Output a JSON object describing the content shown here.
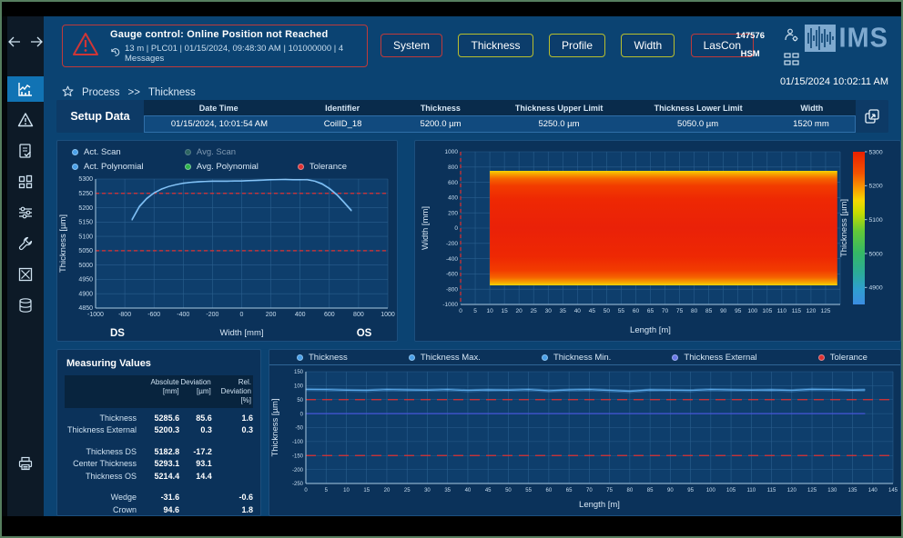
{
  "header": {
    "alert": {
      "title": "Gauge control:  Online Position not Reached",
      "details": "13 m   |   PLC01   |   01/15/2024, 09:48:30 AM   |   101000000   |   4 Messages"
    },
    "buttons": [
      {
        "label": "System",
        "border": "#c03a3a"
      },
      {
        "label": "Thickness",
        "border": "#b9bf2e"
      },
      {
        "label": "Profile",
        "border": "#b9bf2e"
      },
      {
        "label": "Width",
        "border": "#b9bf2e"
      },
      {
        "label": "LasCon",
        "border": "#c03a3a"
      }
    ],
    "line_number": "147576",
    "mill": "HSM",
    "logo_text": "IMS",
    "datetime": "01/15/2024  10:02:11 AM"
  },
  "breadcrumb": {
    "root": "Process",
    "separator": ">>",
    "current": "Thickness"
  },
  "sidebar_icons": [
    "back-arrow",
    "forward-arrow",
    "trend-chart",
    "warning-triangle",
    "report-check",
    "dashboard-grid",
    "sliders",
    "wrench",
    "crossed-box",
    "database",
    "printer"
  ],
  "setup_data": {
    "title": "Setup Data",
    "columns": [
      "Date Time",
      "Identifier",
      "Thickness",
      "Thickness Upper Limit",
      "Thickness Lower Limit",
      "Width"
    ],
    "values": [
      "01/15/2024, 10:01:54 AM",
      "CoilID_18",
      "5200.0 µm",
      "5250.0 µm",
      "5050.0 µm",
      "1520 mm"
    ],
    "expand_icon": "open-in-window"
  },
  "measuring_values": {
    "title": "Measuring Values",
    "columns": [
      {
        "line1": "Absolute",
        "line2": "[mm]"
      },
      {
        "line1": "Deviation",
        "line2": "[µm]"
      },
      {
        "line1": "Rel. Deviation",
        "line2": "[%]"
      }
    ],
    "rows": [
      {
        "label": "Thickness",
        "absolute": "5285.6",
        "deviation": "85.6",
        "rel": "1.6"
      },
      {
        "label": "Thickness External",
        "absolute": "5200.3",
        "deviation": "0.3",
        "rel": "0.3"
      },
      {
        "label": "",
        "absolute": "",
        "deviation": "",
        "rel": ""
      },
      {
        "label": "Thickness DS",
        "absolute": "5182.8",
        "deviation": "-17.2",
        "rel": ""
      },
      {
        "label": "Center Thickness",
        "absolute": "5293.1",
        "deviation": "93.1",
        "rel": ""
      },
      {
        "label": "Thickness OS",
        "absolute": "5214.4",
        "deviation": "14.4",
        "rel": ""
      },
      {
        "label": "",
        "absolute": "",
        "deviation": "",
        "rel": ""
      },
      {
        "label": "Wedge",
        "absolute": "-31.6",
        "deviation": "",
        "rel": "-0.6"
      },
      {
        "label": "Crown",
        "absolute": "94.6",
        "deviation": "",
        "rel": "1.8"
      }
    ]
  },
  "chart_data": [
    {
      "id": "profile",
      "type": "line",
      "xlabel": "Width [mm]",
      "ylabel": "Thickness [µm]",
      "xlim": [
        -1000,
        1000
      ],
      "ylim": [
        4850,
        5300
      ],
      "xtick_step": 200,
      "ytick_step": 50,
      "grid": true,
      "tolerance": [
        5250,
        5050
      ],
      "corner_labels": [
        "DS",
        "OS"
      ],
      "legend": [
        {
          "label": "Act. Scan",
          "color": "#4aa0e8",
          "row": 1,
          "col": 1
        },
        {
          "label": "Avg. Scan",
          "color": "#4a8f68",
          "row": 1,
          "col": 2,
          "dim": true
        },
        {
          "label": "Act. Polynomial",
          "color": "#4aa0e8",
          "row": 2,
          "col": 1
        },
        {
          "label": "Avg. Polynomial",
          "color": "#2fb34a",
          "row": 2,
          "col": 2
        },
        {
          "label": "Tolerance",
          "color": "#e03232",
          "row": 2,
          "col": 3
        }
      ],
      "x": [
        -750,
        -700,
        -650,
        -600,
        -550,
        -500,
        -450,
        -400,
        -350,
        -300,
        -250,
        -200,
        -150,
        -100,
        -50,
        0,
        50,
        100,
        150,
        200,
        250,
        300,
        350,
        400,
        450,
        500,
        550,
        600,
        650,
        700,
        750
      ],
      "series": [
        {
          "name": "Act. Scan",
          "color": "#5aa8e8",
          "width": 1.5,
          "values": [
            5160,
            5206,
            5233,
            5252,
            5265,
            5274,
            5280,
            5285,
            5288,
            5290,
            5291,
            5292,
            5292,
            5292,
            5293,
            5293,
            5294,
            5295,
            5296,
            5297,
            5298,
            5298,
            5297,
            5297,
            5298,
            5293,
            5284,
            5268,
            5247,
            5220,
            5192
          ]
        },
        {
          "name": "Act. Polynomial",
          "color": "#8ec6f4",
          "width": 1.1,
          "values": [
            5157,
            5203,
            5231,
            5251,
            5264,
            5274,
            5281,
            5286,
            5289,
            5291,
            5292,
            5293,
            5293,
            5293,
            5294,
            5294,
            5295,
            5296,
            5297,
            5298,
            5298,
            5299,
            5298,
            5298,
            5297,
            5292,
            5282,
            5266,
            5245,
            5218,
            5189
          ]
        }
      ]
    },
    {
      "id": "heatmap",
      "type": "heatmap",
      "xlabel": "Length [m]",
      "ylabel": "Width [mm]",
      "xlim": [
        0,
        130
      ],
      "ylim": [
        -1000,
        1000
      ],
      "xtick_step": 5,
      "xtick_max": 125,
      "ytick_step": 200,
      "band": {
        "x_start": 10,
        "x_end": 129,
        "y_min": -750,
        "y_max": 750
      },
      "band_stops": [
        [
          0,
          "#f7d400"
        ],
        [
          3,
          "#f79e00"
        ],
        [
          7,
          "#f56300"
        ],
        [
          13,
          "#f23c00"
        ],
        [
          25,
          "#ee2803"
        ],
        [
          50,
          "#ea2108"
        ],
        [
          75,
          "#ee2803"
        ],
        [
          87,
          "#f23c00"
        ],
        [
          93,
          "#f56300"
        ],
        [
          97,
          "#f79e00"
        ],
        [
          100,
          "#f7d400"
        ]
      ],
      "zero_line_color": "#e03232",
      "colorbar": {
        "label": "Thickness [µm]",
        "min": 4850,
        "max": 5300,
        "ticks": [
          5300,
          5200,
          5100,
          5000,
          4900
        ],
        "stops": [
          [
            0,
            "#e82000"
          ],
          [
            14,
            "#f45200"
          ],
          [
            24,
            "#f99b00"
          ],
          [
            32,
            "#f6d800"
          ],
          [
            40,
            "#c6dc00"
          ],
          [
            52,
            "#62c838"
          ],
          [
            66,
            "#35b865"
          ],
          [
            80,
            "#2bab9b"
          ],
          [
            90,
            "#2f9fd0"
          ],
          [
            100,
            "#3b8de2"
          ]
        ]
      }
    },
    {
      "id": "trend",
      "type": "line",
      "xlabel": "Length [m]",
      "ylabel": "Thickness [µm]",
      "xlim": [
        0,
        145
      ],
      "ylim": [
        -250,
        150
      ],
      "xtick_step": 5,
      "ytick_step": 50,
      "grid": true,
      "tolerance": [
        50,
        -150
      ],
      "legend": [
        {
          "label": "Thickness",
          "color": "#4aa0e8"
        },
        {
          "label": "Thickness Max.",
          "color": "#4aa0e8"
        },
        {
          "label": "Thickness Min.",
          "color": "#4aa0e8"
        },
        {
          "label": "Thickness External",
          "color": "#6a78e8"
        },
        {
          "label": "Tolerance",
          "color": "#e03232"
        }
      ],
      "x": [
        0,
        5,
        10,
        15,
        20,
        25,
        30,
        35,
        40,
        45,
        50,
        55,
        60,
        65,
        70,
        75,
        80,
        85,
        90,
        95,
        100,
        105,
        110,
        115,
        120,
        125,
        130,
        135,
        138
      ],
      "series": [
        {
          "name": "Thickness Max.",
          "color": "#5aa8e8",
          "width": 0.7,
          "opacity": 0.45,
          "values": [
            91,
            90,
            88,
            87,
            90,
            89,
            88,
            90,
            87,
            89,
            88,
            90,
            86,
            89,
            90,
            87,
            84,
            89,
            88,
            87,
            90,
            89,
            88,
            89,
            87,
            91,
            90,
            88,
            89
          ]
        },
        {
          "name": "Thickness Min.",
          "color": "#5aa8e8",
          "width": 0.7,
          "opacity": 0.45,
          "values": [
            82,
            81,
            79,
            78,
            81,
            80,
            79,
            81,
            78,
            80,
            79,
            81,
            77,
            80,
            81,
            78,
            75,
            80,
            79,
            78,
            81,
            80,
            79,
            80,
            78,
            82,
            81,
            79,
            80
          ]
        },
        {
          "name": "Thickness",
          "color": "#5aa8e8",
          "width": 1.4,
          "values": [
            87,
            86,
            84,
            83,
            86,
            85,
            84,
            86,
            83,
            85,
            84,
            86,
            82,
            85,
            86,
            83,
            80,
            85,
            84,
            83,
            86,
            85,
            84,
            85,
            83,
            87,
            86,
            84,
            85
          ]
        },
        {
          "name": "Thickness External",
          "color": "#4656d8",
          "width": 1.3,
          "values": [
            0,
            0,
            0,
            0,
            0,
            0,
            0,
            0,
            0,
            0,
            0,
            0,
            0,
            0,
            0,
            0,
            0,
            0,
            0,
            0,
            0,
            0,
            0,
            0,
            0,
            0,
            0,
            0,
            0
          ]
        }
      ]
    }
  ]
}
